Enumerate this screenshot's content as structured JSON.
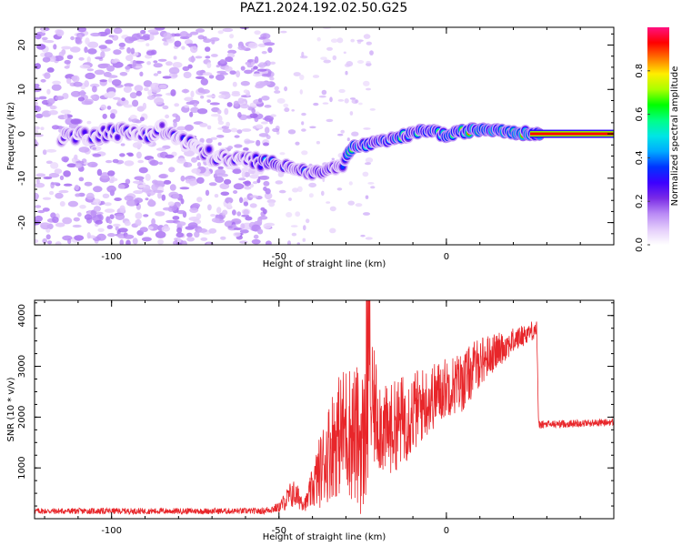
{
  "page": {
    "title": "PAZ1.2024.192.02.50.G25"
  },
  "colors": {
    "snr_line": "#e8262a",
    "colormap": [
      "#ffffff",
      "#e4cdfb",
      "#b98af5",
      "#7a2be6",
      "#3c00ff",
      "#0033ff",
      "#00aaff",
      "#00e5e5",
      "#00ff88",
      "#00ff00",
      "#aaff00",
      "#ffee00",
      "#ff7700",
      "#ff0000",
      "#ff1080"
    ]
  },
  "chart_data": [
    {
      "type": "heatmap",
      "title": "PAZ1.2024.192.02.50.G25",
      "xlabel": "Height of straight line (km)",
      "ylabel": "Frequency (Hz)",
      "xlim": [
        -123,
        50
      ],
      "ylim": [
        -25,
        24
      ],
      "xticks": [
        -100,
        -50,
        0
      ],
      "yticks": [
        -20,
        -10,
        0,
        10,
        20
      ],
      "ridge_points": [
        [
          -110,
          -0.5
        ],
        [
          -100,
          0.5
        ],
        [
          -90,
          0
        ],
        [
          -85,
          1
        ],
        [
          -80,
          -1
        ],
        [
          -75,
          -3
        ],
        [
          -70,
          -5
        ],
        [
          -65,
          -6
        ],
        [
          -58,
          -6
        ],
        [
          -52,
          -6.5
        ],
        [
          -46,
          -7.5
        ],
        [
          -40,
          -9
        ],
        [
          -35,
          -8
        ],
        [
          -31,
          -7
        ],
        [
          -28,
          -3
        ],
        [
          -24,
          -2.5
        ],
        [
          -20,
          -2
        ],
        [
          -15,
          -1
        ],
        [
          -10,
          0
        ],
        [
          -5,
          1
        ],
        [
          0,
          -0.5
        ],
        [
          5,
          0.5
        ],
        [
          10,
          1
        ],
        [
          15,
          1
        ],
        [
          20,
          0.5
        ],
        [
          25,
          0
        ],
        [
          30,
          0
        ],
        [
          40,
          0
        ],
        [
          50,
          0
        ]
      ],
      "colorbar": {
        "label": "Normalized spectral amplitude",
        "range": [
          0,
          1
        ],
        "ticks": [
          "0.0",
          "0.2",
          "0.4",
          "0.6",
          "0.8"
        ]
      }
    },
    {
      "type": "line",
      "xlabel": "Height of straight line (km)",
      "ylabel": "SNR (10 * v/v)",
      "xlim": [
        -123,
        50
      ],
      "ylim": [
        0,
        4300
      ],
      "xticks": [
        -100,
        -50,
        0
      ],
      "yticks": [
        1000,
        2000,
        3000,
        4000
      ],
      "envelope": [
        {
          "x": -123,
          "base": 150,
          "amp": 60
        },
        {
          "x": -55,
          "base": 150,
          "amp": 60
        },
        {
          "x": -50,
          "base": 220,
          "amp": 100
        },
        {
          "x": -46,
          "base": 500,
          "amp": 300
        },
        {
          "x": -42,
          "base": 300,
          "amp": 150
        },
        {
          "x": -38,
          "base": 900,
          "amp": 700
        },
        {
          "x": -34,
          "base": 1500,
          "amp": 1100
        },
        {
          "x": -30,
          "base": 1800,
          "amp": 1300
        },
        {
          "x": -25,
          "base": 1500,
          "amp": 1500
        },
        {
          "x": -22,
          "base": 2200,
          "amp": 1200
        },
        {
          "x": -18,
          "base": 1700,
          "amp": 900
        },
        {
          "x": -12,
          "base": 2000,
          "amp": 900
        },
        {
          "x": -6,
          "base": 2300,
          "amp": 700
        },
        {
          "x": 0,
          "base": 2600,
          "amp": 600
        },
        {
          "x": 5,
          "base": 2700,
          "amp": 600
        },
        {
          "x": 10,
          "base": 3100,
          "amp": 500
        },
        {
          "x": 15,
          "base": 3300,
          "amp": 350
        },
        {
          "x": 20,
          "base": 3500,
          "amp": 250
        },
        {
          "x": 24,
          "base": 3650,
          "amp": 200
        },
        {
          "x": 27,
          "base": 3750,
          "amp": 200
        },
        {
          "x": 27.5,
          "base": 1850,
          "amp": 80
        },
        {
          "x": 50,
          "base": 1900,
          "amp": 70
        }
      ]
    }
  ]
}
